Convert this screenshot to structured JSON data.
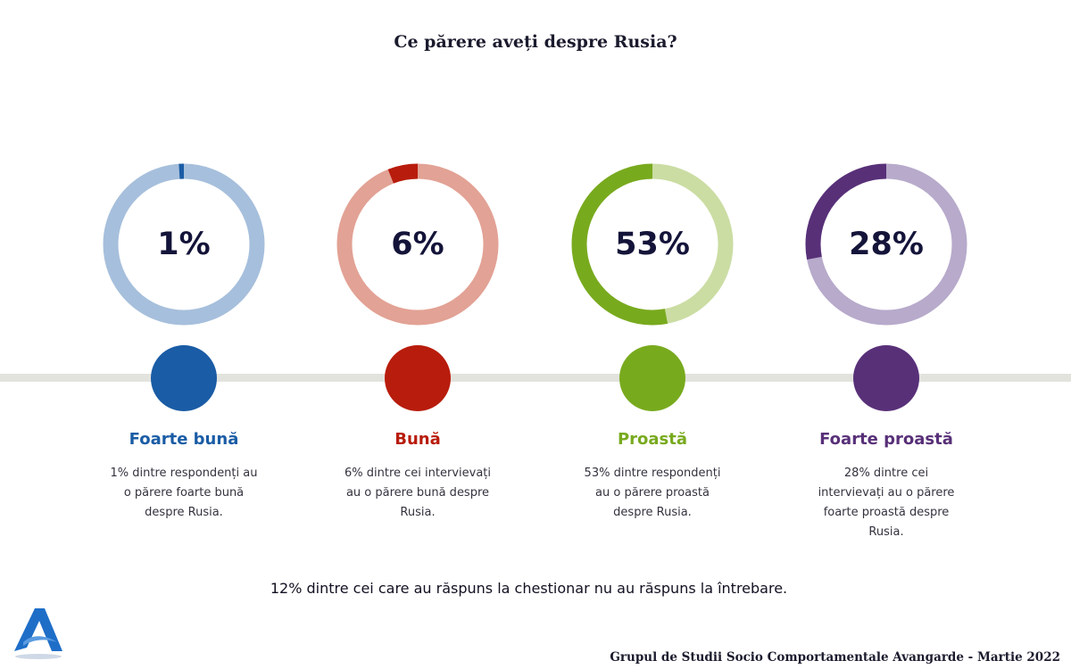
{
  "title": "Ce părere aveți despre Rusia?",
  "chart_data": {
    "type": "pie",
    "title": "Ce părere aveți despre Rusia?",
    "categories": [
      "Foarte bună",
      "Bună",
      "Proastă",
      "Foarte proastă"
    ],
    "values": [
      1,
      6,
      53,
      28
    ],
    "items": [
      {
        "label": "Foarte bună",
        "value": 1,
        "value_label": "1%",
        "description": "1% dintre respondenți au o părere foarte bună despre Rusia.",
        "color": "#1a5ca5",
        "track_color": "#a6bfdc",
        "dot_color": "#1a5ca5"
      },
      {
        "label": "Bună",
        "value": 6,
        "value_label": "6%",
        "description": "6% dintre cei intervievați au o părere bună despre Rusia.",
        "color": "#b81c0c",
        "track_color": "#e2a295",
        "dot_color": "#b81c0c"
      },
      {
        "label": "Proastă",
        "value": 53,
        "value_label": "53%",
        "description": "53% dintre respondenți au o părere proastă despre Rusia.",
        "color": "#78aa1e",
        "track_color": "#cbdda3",
        "dot_color": "#78aa1e"
      },
      {
        "label": "Foarte proastă",
        "value": 28,
        "value_label": "28%",
        "description": "28% dintre cei intervievați au o părere foarte proastă despre Rusia.",
        "color": "#583078",
        "track_color": "#b7aacb",
        "dot_color": "#583078"
      }
    ]
  },
  "note": "12% dintre cei care au răspuns la chestionar nu au răspuns la întrebare.",
  "footer": "Grupul de Studii Socio Comportamentale Avangarde    - Martie 2022",
  "logo": {
    "icon": "avangarde-a-logo",
    "color": "#1e6ec8"
  }
}
